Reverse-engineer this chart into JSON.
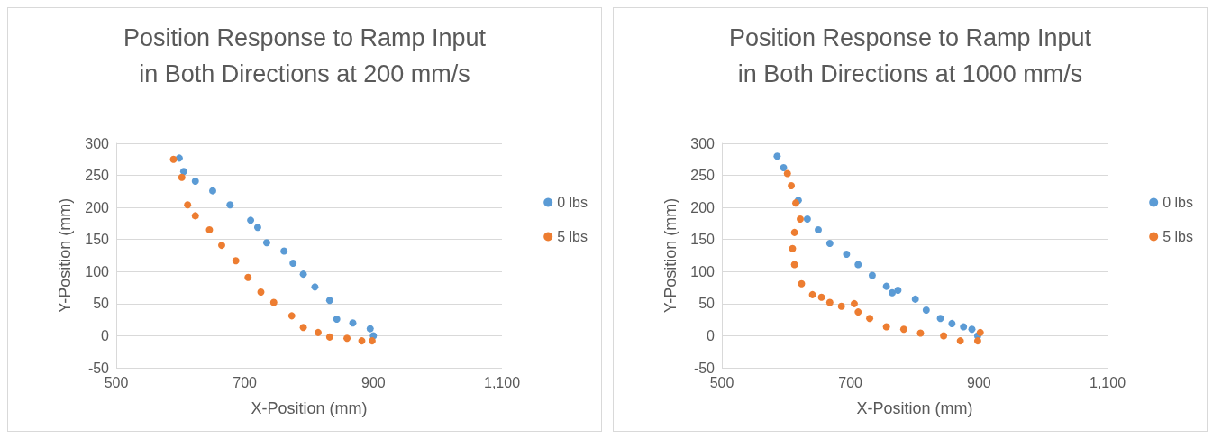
{
  "chart_data": [
    {
      "type": "scatter",
      "title": "Position Response to Ramp Input\nin Both Directions at 200 mm/s",
      "xlabel": "X-Position (mm)",
      "ylabel": "Y-Position (mm)",
      "xlim": [
        500,
        1100
      ],
      "xticks": [
        500,
        700,
        900,
        {
          "value": 1100,
          "label": "1,100"
        }
      ],
      "ylim": [
        -50,
        300
      ],
      "yticks": [
        -50,
        0,
        50,
        100,
        150,
        200,
        250,
        300
      ],
      "grid": "y",
      "legend": "right",
      "marker": "circle",
      "series": [
        {
          "name": "0 lbs",
          "color": "#5b9bd5",
          "x": [
            598,
            605,
            623,
            650,
            677,
            709,
            720,
            734,
            761,
            775,
            791,
            809,
            832,
            843,
            868,
            895,
            900
          ],
          "values": [
            277,
            256,
            241,
            226,
            204,
            180,
            169,
            145,
            132,
            113,
            96,
            76,
            55,
            26,
            20,
            11,
            0
          ]
        },
        {
          "name": "5 lbs",
          "color": "#ed7d31",
          "x": [
            589,
            602,
            611,
            623,
            645,
            664,
            686,
            705,
            725,
            745,
            773,
            791,
            814,
            832,
            859,
            882,
            898
          ],
          "values": [
            275,
            247,
            204,
            187,
            165,
            141,
            117,
            91,
            68,
            52,
            31,
            13,
            5,
            -2,
            -4,
            -8,
            -8
          ]
        }
      ]
    },
    {
      "type": "scatter",
      "title": "Position Response to Ramp Input\nin Both Directions at 1000 mm/s",
      "xlabel": "X-Position (mm)",
      "ylabel": "Y-Position (mm)",
      "xlim": [
        500,
        1100
      ],
      "xticks": [
        500,
        700,
        900,
        {
          "value": 1100,
          "label": "1,100"
        }
      ],
      "ylim": [
        -50,
        300
      ],
      "yticks": [
        -50,
        0,
        50,
        100,
        150,
        200,
        250,
        300
      ],
      "grid": "y",
      "legend": "right",
      "marker": "circle",
      "series": [
        {
          "name": "0 lbs",
          "color": "#5b9bd5",
          "x": [
            586,
            596,
            619,
            633,
            650,
            668,
            694,
            712,
            734,
            756,
            765,
            774,
            801,
            818,
            840,
            858,
            876,
            889,
            898
          ],
          "values": [
            280,
            262,
            211,
            182,
            165,
            144,
            127,
            111,
            94,
            77,
            67,
            71,
            57,
            40,
            27,
            19,
            14,
            10,
            0
          ]
        },
        {
          "name": "5 lbs",
          "color": "#ed7d31",
          "x": [
            602,
            608,
            615,
            622,
            613,
            610,
            613,
            624,
            641,
            655,
            668,
            686,
            706,
            712,
            730,
            756,
            783,
            809,
            845,
            871,
            898,
            902
          ],
          "values": [
            253,
            234,
            207,
            182,
            161,
            136,
            111,
            81,
            64,
            60,
            52,
            46,
            50,
            37,
            27,
            14,
            10,
            4,
            0,
            -8,
            -8,
            5
          ]
        }
      ]
    }
  ]
}
